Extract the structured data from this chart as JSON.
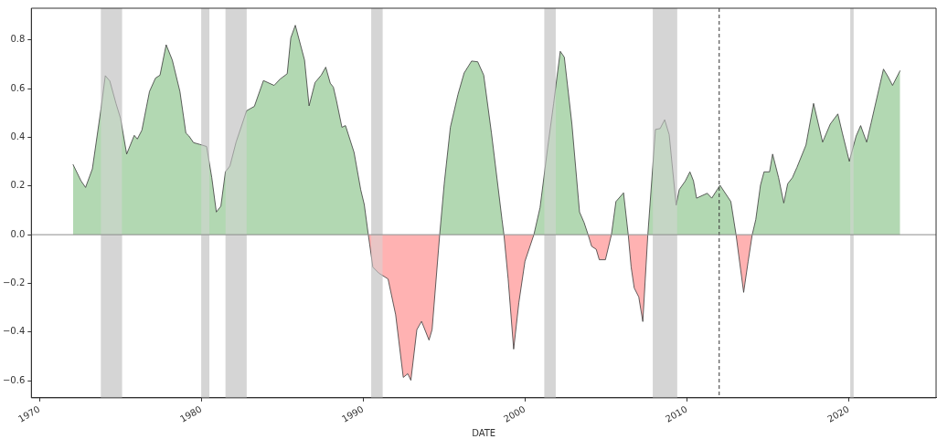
{
  "chart_data": {
    "type": "area",
    "xlabel": "DATE",
    "grid": false,
    "legend": false,
    "xlim": [
      1969.5,
      2025.4
    ],
    "xticks": [
      1970,
      1980,
      1990,
      2000,
      2010,
      2020
    ],
    "ylim": [
      -0.67,
      0.93
    ],
    "yticks": [
      {
        "value": -0.6,
        "label": "−0.6"
      },
      {
        "value": -0.4,
        "label": "−0.4"
      },
      {
        "value": -0.2,
        "label": "−0.2"
      },
      {
        "value": 0,
        "label": "0.0"
      },
      {
        "value": 0.2,
        "label": "0.2"
      },
      {
        "value": 0.4,
        "label": "0.4"
      },
      {
        "value": 0.6,
        "label": "0.6"
      },
      {
        "value": 0.8,
        "label": "0.8"
      }
    ],
    "x": [
      1972.07,
      1972.57,
      1972.85,
      1973.27,
      1973.8,
      1974.07,
      1974.35,
      1974.73,
      1975.01,
      1975.39,
      1975.86,
      1976.05,
      1976.33,
      1976.8,
      1977.17,
      1977.45,
      1977.83,
      1978.21,
      1978.68,
      1979.05,
      1979.24,
      1979.52,
      1979.9,
      1980.33,
      1980.65,
      1980.93,
      1981.21,
      1981.49,
      1981.77,
      1982.15,
      1982.8,
      1983.28,
      1983.84,
      1984.5,
      1984.87,
      1985.31,
      1985.53,
      1985.81,
      1986.38,
      1986.66,
      1987.03,
      1987.41,
      1987.69,
      1987.97,
      1988.16,
      1988.35,
      1988.69,
      1988.91,
      1989.44,
      1989.85,
      1990.07,
      1990.32,
      1990.6,
      1990.97,
      1991.54,
      1992.01,
      1992.48,
      1992.76,
      1992.95,
      1993.32,
      1993.61,
      1994.07,
      1994.26,
      1994.73,
      1995.01,
      1995.39,
      1995.86,
      1996.24,
      1996.7,
      1997.08,
      1997.45,
      1997.93,
      1998.58,
      1998.7,
      1998.96,
      1999.3,
      1999.62,
      2000.0,
      2000.55,
      2000.93,
      2001.4,
      2001.77,
      2002.18,
      2002.43,
      2002.9,
      2003.37,
      2003.65,
      2003.9,
      2004.12,
      2004.4,
      2004.59,
      2004.97,
      2005.34,
      2005.62,
      2006.09,
      2006.38,
      2006.56,
      2006.75,
      2007.03,
      2007.28,
      2007.59,
      2008.06,
      2008.35,
      2008.63,
      2008.91,
      2009.34,
      2009.53,
      2009.91,
      2010.19,
      2010.41,
      2010.6,
      2011.26,
      2011.54,
      2012.05,
      2012.72,
      2013.04,
      2013.51,
      2013.79,
      2014.04,
      2014.26,
      2014.55,
      2014.77,
      2015.11,
      2015.3,
      2015.67,
      2015.99,
      2016.23,
      2016.52,
      2016.8,
      2017.36,
      2017.83,
      2018.39,
      2018.86,
      2019.33,
      2019.61,
      2020.04,
      2020.46,
      2020.74,
      2021.11,
      2021.39,
      2022.15,
      2022.43,
      2022.71,
      2023.18
    ],
    "series": [
      {
        "color": "#b2d8b2",
        "values": [
          0.289,
          0.221,
          0.194,
          0.27,
          0.515,
          0.653,
          0.631,
          0.539,
          0.478,
          0.331,
          0.408,
          0.393,
          0.429,
          0.588,
          0.643,
          0.655,
          0.78,
          0.717,
          0.588,
          0.417,
          0.405,
          0.378,
          0.371,
          0.362,
          0.234,
          0.093,
          0.117,
          0.258,
          0.282,
          0.38,
          0.509,
          0.527,
          0.633,
          0.613,
          0.639,
          0.661,
          0.808,
          0.86,
          0.717,
          0.529,
          0.625,
          0.655,
          0.688,
          0.622,
          0.606,
          0.551,
          0.441,
          0.448,
          0.338,
          0.185,
          0.124,
          0.0,
          null,
          null,
          null,
          null,
          null,
          null,
          null,
          null,
          null,
          null,
          null,
          0.0,
          0.209,
          0.441,
          0.576,
          0.664,
          0.713,
          0.71,
          0.655,
          0.417,
          0.062,
          0.0,
          null,
          null,
          null,
          null,
          0.0,
          0.111,
          0.356,
          0.539,
          0.753,
          0.729,
          0.454,
          0.093,
          0.05,
          0.0,
          null,
          null,
          null,
          null,
          0.0,
          0.136,
          0.172,
          0.0,
          null,
          null,
          null,
          null,
          0.0,
          0.432,
          0.436,
          0.472,
          0.411,
          0.121,
          0.185,
          0.221,
          0.258,
          0.221,
          0.15,
          0.17,
          0.15,
          0.203,
          0.136,
          0.0,
          null,
          null,
          0.0,
          0.062,
          0.203,
          0.258,
          0.258,
          0.331,
          0.234,
          0.13,
          0.209,
          0.234,
          0.276,
          0.368,
          0.539,
          0.38,
          0.454,
          0.496,
          0.417,
          0.301,
          0.405,
          0.448,
          0.38,
          0.46,
          0.68,
          0.649,
          0.613,
          0.674
        ]
      },
      {
        "color": "#ffb2b2",
        "values": [
          null,
          null,
          null,
          null,
          null,
          null,
          null,
          null,
          null,
          null,
          null,
          null,
          null,
          null,
          null,
          null,
          null,
          null,
          null,
          null,
          null,
          null,
          null,
          null,
          null,
          null,
          null,
          null,
          null,
          null,
          null,
          null,
          null,
          null,
          null,
          null,
          null,
          null,
          null,
          null,
          null,
          null,
          null,
          null,
          null,
          null,
          null,
          null,
          null,
          null,
          null,
          0.0,
          -0.133,
          -0.158,
          -0.182,
          -0.329,
          -0.586,
          -0.571,
          -0.598,
          -0.39,
          -0.356,
          -0.433,
          -0.39,
          0.0,
          null,
          null,
          null,
          null,
          null,
          null,
          null,
          null,
          null,
          0.0,
          -0.182,
          -0.47,
          -0.28,
          -0.109,
          0.0,
          null,
          null,
          null,
          null,
          null,
          null,
          null,
          null,
          0.0,
          -0.048,
          -0.06,
          -0.103,
          -0.103,
          0.0,
          null,
          null,
          0.0,
          -0.133,
          -0.219,
          -0.256,
          -0.357,
          0.0,
          null,
          null,
          null,
          null,
          null,
          null,
          null,
          null,
          null,
          null,
          null,
          null,
          null,
          null,
          0.0,
          -0.237,
          -0.109,
          0.0,
          null,
          null,
          null,
          null,
          null,
          null,
          null,
          null,
          null,
          null,
          null,
          null,
          null,
          null,
          null,
          null,
          null,
          null,
          null,
          null,
          null,
          null,
          null,
          null,
          null
        ]
      }
    ],
    "bands": [
      {
        "axis": "x",
        "from": 1973.8,
        "to": 1975.1,
        "color": "#d6d6d6"
      },
      {
        "axis": "x",
        "from": 1980.0,
        "to": 1980.5,
        "color": "#d6d6d6"
      },
      {
        "axis": "x",
        "from": 1981.5,
        "to": 1982.8,
        "color": "#d6d6d6"
      },
      {
        "axis": "x",
        "from": 1990.5,
        "to": 1991.2,
        "color": "#d6d6d6"
      },
      {
        "axis": "x",
        "from": 2001.2,
        "to": 2001.9,
        "color": "#d6d6d6"
      },
      {
        "axis": "x",
        "from": 2007.9,
        "to": 2009.4,
        "color": "#d6d6d6"
      },
      {
        "axis": "x",
        "from": 2020.1,
        "to": 2020.3,
        "color": "#d6d6d6"
      }
    ],
    "ref_lines": [
      {
        "axis": "x",
        "value": 2012.0,
        "color": "#333333",
        "line_style": "dashed"
      },
      {
        "axis": "y",
        "value": 0.0,
        "color": "#8c8c8c",
        "line_style": "solid"
      }
    ]
  }
}
